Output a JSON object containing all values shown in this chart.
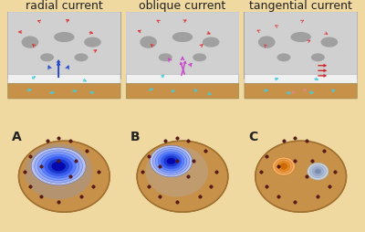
{
  "background_color": "#f0d9a0",
  "titles": [
    "radial current",
    "oblique current",
    "tangential current"
  ],
  "labels": [
    "A",
    "B",
    "C"
  ],
  "title_fontsize": 9,
  "label_fontsize": 10,
  "fig_width": 4.0,
  "fig_height": 2.54,
  "dpi": 100,
  "brain_bg": "#c8c8c8",
  "panel_border_color": "#999999",
  "head_skin_color": "#c8914a",
  "head_skin_dark": "#a07030",
  "topo_A_color": "#2244cc",
  "topo_B_color_center": "#3355cc",
  "topo_C_color_left": "#e08830",
  "topo_C_color_right": "#aabbdd",
  "arrow_red": "#dd3333",
  "arrow_cyan": "#44ccdd",
  "arrow_blue": "#2244cc",
  "arrow_magenta": "#cc44cc",
  "source_A_color": "#2244cc",
  "source_B_color": "#cc44cc",
  "source_C_color": "#cc2222"
}
